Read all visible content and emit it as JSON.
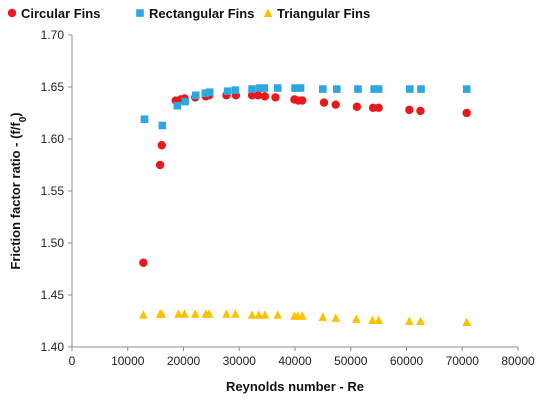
{
  "chart_data": {
    "type": "scatter",
    "xlabel": "Reynolds number - Re",
    "ylabel_prefix": "Friction factor ratio - (f/f",
    "ylabel_sub": "0",
    "ylabel_suffix": ")",
    "xlim": [
      0,
      80000
    ],
    "ylim": [
      1.4,
      1.7
    ],
    "x_ticks": [
      "0",
      "10000",
      "20000",
      "30000",
      "40000",
      "50000",
      "60000",
      "70000",
      "80000"
    ],
    "y_ticks": [
      "1.40",
      "1.45",
      "1.50",
      "1.55",
      "1.60",
      "1.65",
      "1.70"
    ],
    "grid": false,
    "legend_position": "top",
    "series": [
      {
        "name": "Circular Fins",
        "marker": "circle",
        "color": "#e8191c",
        "points": [
          [
            12800,
            1.481
          ],
          [
            15800,
            1.575
          ],
          [
            16100,
            1.594
          ],
          [
            18600,
            1.637
          ],
          [
            19500,
            1.638
          ],
          [
            20200,
            1.639
          ],
          [
            22100,
            1.64
          ],
          [
            24000,
            1.641
          ],
          [
            24600,
            1.642
          ],
          [
            27700,
            1.642
          ],
          [
            29400,
            1.642
          ],
          [
            32300,
            1.642
          ],
          [
            33400,
            1.642
          ],
          [
            34600,
            1.641
          ],
          [
            36500,
            1.64
          ],
          [
            39900,
            1.638
          ],
          [
            40600,
            1.637
          ],
          [
            41300,
            1.637
          ],
          [
            45200,
            1.635
          ],
          [
            47300,
            1.633
          ],
          [
            51100,
            1.631
          ],
          [
            54000,
            1.63
          ],
          [
            55000,
            1.63
          ],
          [
            60500,
            1.628
          ],
          [
            62500,
            1.627
          ],
          [
            70800,
            1.625
          ]
        ]
      },
      {
        "name": "Rectangular Fins",
        "marker": "square",
        "color": "#2ea7e0",
        "points": [
          [
            13000,
            1.619
          ],
          [
            16200,
            1.613
          ],
          [
            18900,
            1.632
          ],
          [
            20300,
            1.636
          ],
          [
            22200,
            1.642
          ],
          [
            23900,
            1.644
          ],
          [
            24700,
            1.645
          ],
          [
            27900,
            1.646
          ],
          [
            29300,
            1.647
          ],
          [
            32300,
            1.648
          ],
          [
            33700,
            1.649
          ],
          [
            34500,
            1.649
          ],
          [
            36900,
            1.649
          ],
          [
            40000,
            1.649
          ],
          [
            41000,
            1.649
          ],
          [
            45000,
            1.648
          ],
          [
            47500,
            1.648
          ],
          [
            51300,
            1.648
          ],
          [
            54200,
            1.648
          ],
          [
            55000,
            1.648
          ],
          [
            60600,
            1.648
          ],
          [
            62600,
            1.648
          ],
          [
            70800,
            1.648
          ]
        ]
      },
      {
        "name": "Triangular Fins",
        "marker": "triangle",
        "color": "#ffc000",
        "points": [
          [
            12800,
            1.431
          ],
          [
            15800,
            1.432
          ],
          [
            16100,
            1.432
          ],
          [
            19100,
            1.432
          ],
          [
            20200,
            1.432
          ],
          [
            22100,
            1.432
          ],
          [
            24000,
            1.432
          ],
          [
            24600,
            1.432
          ],
          [
            27700,
            1.432
          ],
          [
            29300,
            1.432
          ],
          [
            32300,
            1.431
          ],
          [
            33500,
            1.431
          ],
          [
            34600,
            1.431
          ],
          [
            36900,
            1.431
          ],
          [
            39900,
            1.43
          ],
          [
            40500,
            1.43
          ],
          [
            41300,
            1.43
          ],
          [
            45000,
            1.429
          ],
          [
            47300,
            1.428
          ],
          [
            51000,
            1.427
          ],
          [
            53900,
            1.426
          ],
          [
            55000,
            1.426
          ],
          [
            60500,
            1.425
          ],
          [
            62500,
            1.425
          ],
          [
            70800,
            1.424
          ]
        ]
      }
    ]
  }
}
